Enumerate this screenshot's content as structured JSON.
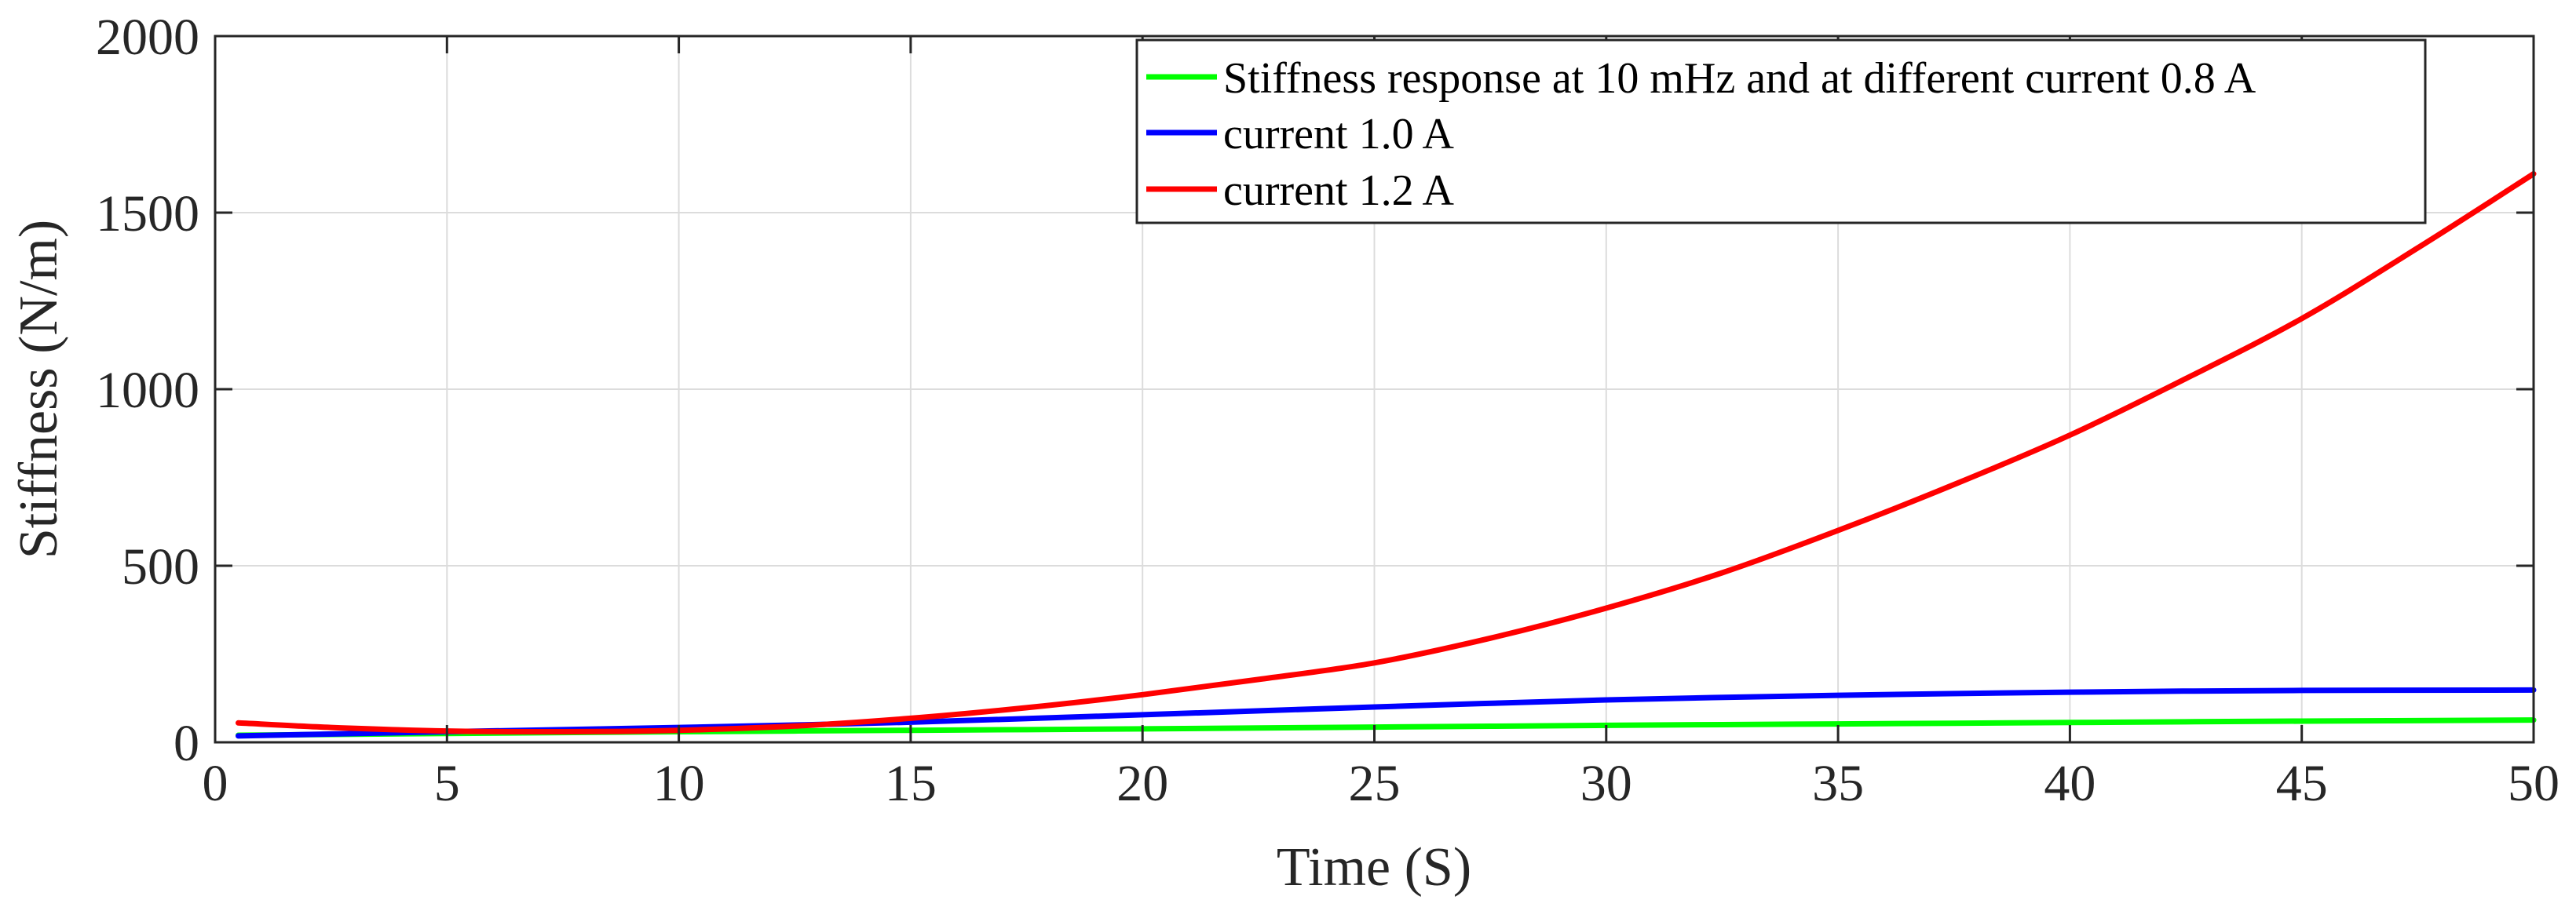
{
  "chart_data": {
    "type": "line",
    "title": "",
    "xlabel": "Time (S)",
    "ylabel": "Stiffness (N/m)",
    "xlim": [
      0,
      50
    ],
    "ylim": [
      0,
      2000
    ],
    "xticks": [
      0,
      5,
      10,
      15,
      20,
      25,
      30,
      35,
      40,
      45,
      50
    ],
    "yticks": [
      0,
      500,
      1000,
      1500,
      2000
    ],
    "xtick_labels": [
      "0",
      "5",
      "10",
      "15",
      "20",
      "25",
      "30",
      "35",
      "40",
      "45",
      "50"
    ],
    "ytick_labels": [
      "0",
      "500",
      "1000",
      "1500",
      "2000"
    ],
    "grid": true,
    "legend_position": "top-right",
    "series": [
      {
        "name": "Stiffness response at 10 mHz and at different current 0.8 A",
        "color": "#00ff00",
        "x": [
          0.5,
          5,
          10,
          15,
          20,
          25,
          30,
          35,
          40,
          45,
          50
        ],
        "y": [
          20,
          25,
          30,
          34,
          38,
          43,
          48,
          52,
          56,
          60,
          63
        ]
      },
      {
        "name": "current 1.0 A",
        "color": "#0000ff",
        "x": [
          0.5,
          5,
          10,
          15,
          20,
          25,
          30,
          35,
          40,
          45,
          50
        ],
        "y": [
          18,
          30,
          42,
          57,
          78,
          100,
          120,
          133,
          142,
          147,
          148
        ]
      },
      {
        "name": "current 1.2 A",
        "color": "#ff0000",
        "x": [
          0.5,
          2.5,
          5,
          7.5,
          10,
          12.5,
          15,
          17.5,
          20,
          22.5,
          25,
          27.5,
          30,
          32.5,
          35,
          37.5,
          40,
          42.5,
          45,
          47.5,
          50
        ],
        "y": [
          55,
          42,
          32,
          30,
          34,
          46,
          68,
          98,
          135,
          178,
          225,
          295,
          380,
          480,
          600,
          730,
          870,
          1030,
          1200,
          1400,
          1610
        ]
      }
    ]
  }
}
